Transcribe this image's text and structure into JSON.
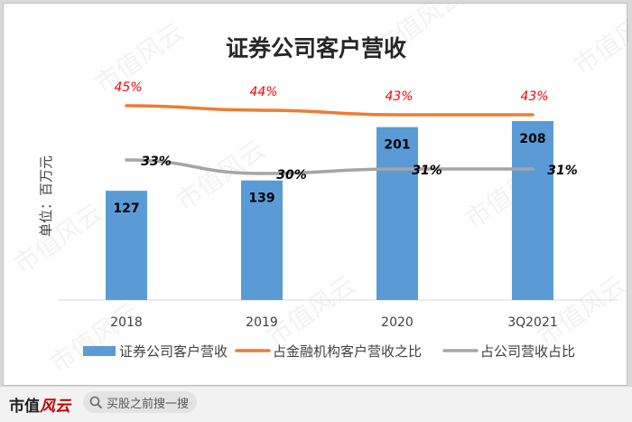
{
  "watermark": "市值风云",
  "footer": {
    "brand_main": "市值",
    "brand_accent": "风云",
    "search_placeholder": "买股之前搜一搜"
  },
  "colors": {
    "bar": "#5b9bd5",
    "line_financial": "#ed7d31",
    "line_company": "#a5a5a5",
    "pct_label": "#ff0000"
  },
  "chart_data": {
    "type": "bar",
    "title": "证券公司客户营收",
    "ylabel": "单位：百万元",
    "categories": [
      "2018",
      "2019",
      "2020",
      "3Q2021"
    ],
    "bar_series": {
      "name": "证券公司客户营收",
      "values": [
        127,
        139,
        201,
        208
      ],
      "labels": [
        "127",
        "139",
        "201",
        "208"
      ]
    },
    "line_series": [
      {
        "name": "占金融机构客户营收之比",
        "values": [
          45,
          44,
          43,
          43
        ],
        "labels": [
          "45%",
          "44%",
          "43%",
          "43%"
        ]
      },
      {
        "name": "占公司营收占比",
        "values": [
          33,
          30,
          31,
          31
        ],
        "labels": [
          "33%",
          "30%",
          "31%",
          "31%"
        ]
      }
    ],
    "legend_position": "bottom",
    "grid": false
  }
}
